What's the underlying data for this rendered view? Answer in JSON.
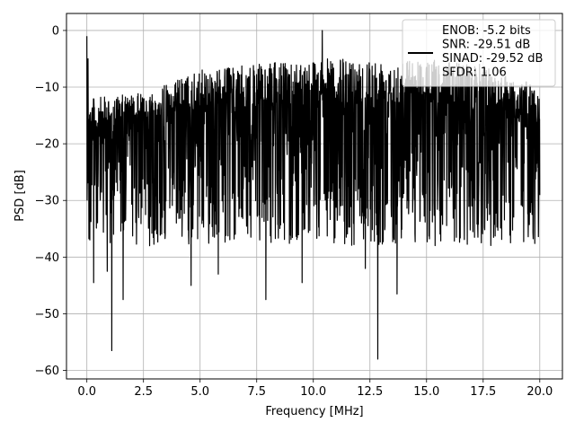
{
  "chart_data": {
    "type": "line",
    "title": "",
    "xlabel": "Frequency [MHz]",
    "ylabel": "PSD [dB]",
    "xlim": [
      -0.9,
      21.0
    ],
    "ylim": [
      -61.5,
      3.0
    ],
    "x_ticks": [
      0.0,
      2.5,
      5.0,
      7.5,
      10.0,
      12.5,
      15.0,
      17.5,
      20.0
    ],
    "x_tick_labels": [
      "0.0",
      "2.5",
      "5.0",
      "7.5",
      "10.0",
      "12.5",
      "15.0",
      "17.5",
      "20.0"
    ],
    "y_ticks": [
      0,
      -10,
      -20,
      -30,
      -40,
      -50,
      -60
    ],
    "y_tick_labels": [
      "0",
      "−10",
      "−20",
      "−30",
      "−40",
      "−50",
      "−60"
    ],
    "grid": true,
    "legend_position": "top-right",
    "series": [
      {
        "name": "ENOB: -5.2 bits\nSNR: -29.51 dB\nSINAD: -29.52 dB\nSFDR: 1.06",
        "color": "#000000",
        "x_range": [
          0.0,
          20.0
        ],
        "points": 2000,
        "upper_envelope": [
          [
            0.0,
            -12
          ],
          [
            2.5,
            -11
          ],
          [
            5.0,
            -7
          ],
          [
            10.0,
            -5
          ],
          [
            15.0,
            -5
          ],
          [
            17.5,
            -6
          ],
          [
            20.0,
            -10
          ]
        ],
        "noise_floor_typical": [
          -30,
          -12
        ],
        "spikes": [
          {
            "x": 0.0,
            "y": -1
          },
          {
            "x": 0.05,
            "y": -5
          },
          {
            "x": 10.4,
            "y": 0
          },
          {
            "x": 1.1,
            "y": -56.5
          },
          {
            "x": 12.85,
            "y": -58
          },
          {
            "x": 0.3,
            "y": -44.5
          },
          {
            "x": 1.6,
            "y": -47.5
          },
          {
            "x": 4.6,
            "y": -45
          },
          {
            "x": 7.9,
            "y": -47.5
          },
          {
            "x": 9.5,
            "y": -44.5
          },
          {
            "x": 13.7,
            "y": -46.5
          },
          {
            "x": 0.9,
            "y": -42.5
          },
          {
            "x": 5.8,
            "y": -43
          },
          {
            "x": 12.3,
            "y": -42
          }
        ]
      }
    ]
  }
}
